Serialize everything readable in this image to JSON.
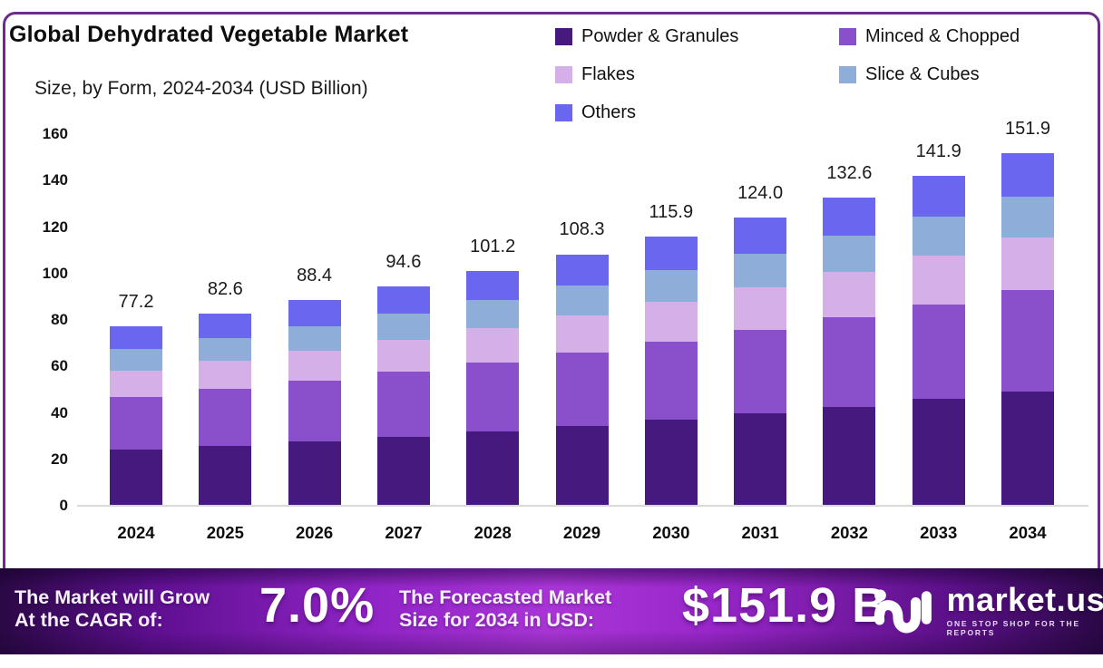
{
  "header": {
    "title": "Global Dehydrated Vegetable Market",
    "subtitle": "Size, by Form, 2024-2034 (USD Billion)"
  },
  "chart_data": {
    "type": "bar",
    "stacked": true,
    "title": "Global Dehydrated Vegetable Market Size, by Form, 2024-2034 (USD Billion)",
    "categories": [
      "2024",
      "2025",
      "2026",
      "2027",
      "2028",
      "2029",
      "2030",
      "2031",
      "2032",
      "2033",
      "2034"
    ],
    "series": [
      {
        "name": "Powder & Granules",
        "color": "#45197e",
        "values": [
          24.0,
          25.8,
          27.7,
          29.8,
          32.0,
          34.4,
          37.0,
          39.7,
          42.7,
          45.9,
          49.2
        ]
      },
      {
        "name": "Minced & Chopped",
        "color": "#8a4fcb",
        "values": [
          23.0,
          24.5,
          26.1,
          27.9,
          29.7,
          31.7,
          33.8,
          36.0,
          38.4,
          40.9,
          43.6
        ]
      },
      {
        "name": "Flakes",
        "color": "#d4afe8",
        "values": [
          11.3,
          12.1,
          13.0,
          13.9,
          14.9,
          16.0,
          17.2,
          18.4,
          19.7,
          21.1,
          22.6
        ]
      },
      {
        "name": "Slice & Cubes",
        "color": "#8fadd9",
        "values": [
          9.3,
          9.9,
          10.6,
          11.3,
          12.0,
          12.8,
          13.6,
          14.5,
          15.5,
          16.5,
          17.6
        ]
      },
      {
        "name": "Others",
        "color": "#6b66f0",
        "values": [
          9.6,
          10.3,
          11.0,
          11.7,
          12.6,
          13.4,
          14.3,
          15.4,
          16.3,
          17.5,
          18.9
        ]
      }
    ],
    "totals": [
      77.2,
      82.6,
      88.4,
      94.6,
      101.2,
      108.3,
      115.9,
      124.0,
      132.6,
      141.9,
      151.9
    ],
    "total_labels": [
      "77.2",
      "82.6",
      "88.4",
      "94.6",
      "101.2",
      "108.3",
      "115.9",
      "124.0",
      "132.6",
      "141.9",
      "151.9"
    ],
    "ylim": [
      0,
      160
    ],
    "yticks": [
      0,
      20,
      40,
      60,
      80,
      100,
      120,
      140,
      160
    ],
    "grid": false,
    "legend_position": "top-right",
    "xlabel": "",
    "ylabel": ""
  },
  "banner": {
    "cagr_label": "The Market will Grow\nAt the CAGR of:",
    "cagr_value": "7.0%",
    "forecast_label": "The Forecasted Market\nSize for 2034 in USD:",
    "forecast_value": "$151.9 B",
    "logo_name": "market.us",
    "logo_tagline": "ONE STOP SHOP FOR THE REPORTS",
    "gradient_center_color": "#a935d6",
    "gradient_edge_color": "#2a0845"
  }
}
